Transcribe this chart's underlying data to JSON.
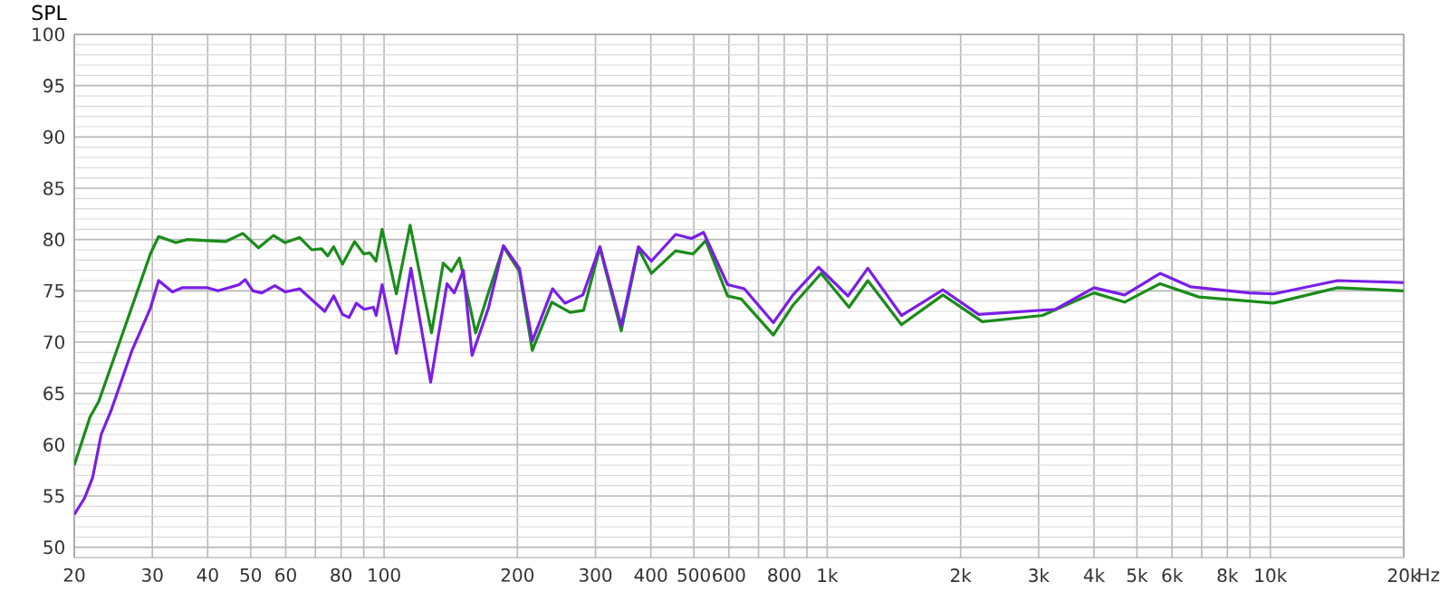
{
  "chart_data": {
    "type": "line",
    "ylabel": "SPL",
    "xlabel": "Hz",
    "log": "x",
    "grid": true,
    "marker": "none",
    "line_style": "solid",
    "xlim": [
      20,
      20000
    ],
    "ylim": [
      49,
      100
    ],
    "xticks": [
      20,
      30,
      40,
      50,
      60,
      {
        "value": 70,
        "label": null
      },
      80,
      {
        "value": 90,
        "label": null
      },
      100,
      200,
      300,
      400,
      500,
      600,
      {
        "value": 700,
        "label": null
      },
      800,
      {
        "value": 900,
        "label": null
      },
      {
        "value": 1000,
        "label": "1k"
      },
      {
        "value": 2000,
        "label": "2k"
      },
      {
        "value": 3000,
        "label": "3k"
      },
      {
        "value": 4000,
        "label": "4k"
      },
      {
        "value": 5000,
        "label": "5k"
      },
      {
        "value": 6000,
        "label": "6k"
      },
      {
        "value": 7000,
        "label": null
      },
      {
        "value": 8000,
        "label": "8k"
      },
      {
        "value": 9000,
        "label": null
      },
      {
        "value": 10000,
        "label": "10k"
      },
      {
        "value": 20000,
        "label": "20k"
      }
    ],
    "yticks": [
      50,
      55,
      60,
      65,
      70,
      75,
      80,
      85,
      90,
      95,
      100
    ],
    "series": [
      {
        "color": "#1a8c1a",
        "x": [
          20,
          21.7,
          22.7,
          25.5,
          29.7,
          31,
          33.9,
          36,
          40,
          43.9,
          48,
          52.1,
          56.3,
          59.8,
          64.5,
          68.7,
          72.3,
          74.6,
          77,
          80.6,
          85.8,
          90,
          92.9,
          95.9,
          99,
          106.6,
          114.5,
          128,
          136,
          142,
          148,
          161,
          172,
          186,
          202,
          216,
          239,
          263,
          282,
          307,
          343,
          375,
          401,
          455,
          498,
          532,
          596,
          640,
          756,
          837,
          969,
          1120,
          1235,
          1471,
          1825,
          2239,
          3060,
          4000,
          4688,
          5639,
          6900,
          10170,
          14180,
          20000
        ],
        "values": [
          58.0,
          62.7,
          64.2,
          70.4,
          78.6,
          80.3,
          79.7,
          80.0,
          79.9,
          79.8,
          80.6,
          79.2,
          80.4,
          79.7,
          80.2,
          79.0,
          79.1,
          78.4,
          79.3,
          77.6,
          79.8,
          78.6,
          78.7,
          77.9,
          81.0,
          74.7,
          81.4,
          70.9,
          77.7,
          76.9,
          78.2,
          70.9,
          74.8,
          79.3,
          76.9,
          69.2,
          73.9,
          72.9,
          73.1,
          79.2,
          71.1,
          79.1,
          76.7,
          78.9,
          78.6,
          79.9,
          74.5,
          74.2,
          70.7,
          73.6,
          76.7,
          73.4,
          76.0,
          71.7,
          74.6,
          72.0,
          72.6,
          74.8,
          73.9,
          75.7,
          74.4,
          73.8,
          75.3,
          75.0
        ]
      },
      {
        "color": "#7a1ee6",
        "x": [
          20,
          21.1,
          22,
          23,
          24.2,
          27,
          29.7,
          31,
          33.3,
          35,
          40,
          42.2,
          47.1,
          48.6,
          50.6,
          53,
          56.7,
          59.8,
          64.5,
          73.5,
          77,
          80.6,
          83.4,
          86.6,
          90.2,
          94.6,
          96,
          99,
          106.6,
          115,
          127.4,
          138.7,
          144,
          151,
          158,
          172,
          186,
          202,
          216,
          240,
          256,
          281,
          307,
          343,
          375,
          401,
          455,
          494,
          526,
          596,
          650,
          756,
          837,
          956,
          1114,
          1235,
          1471,
          1825,
          2196,
          3274,
          4000,
          4688,
          5639,
          6602,
          8969,
          10170,
          14180,
          20000
        ],
        "values": [
          53.2,
          54.8,
          56.8,
          61.0,
          63.3,
          69.2,
          73.3,
          76.0,
          74.9,
          75.3,
          75.3,
          75.0,
          75.6,
          76.1,
          75.0,
          74.8,
          75.5,
          74.9,
          75.2,
          73.0,
          74.5,
          72.7,
          72.4,
          73.8,
          73.2,
          73.4,
          72.6,
          75.6,
          68.9,
          77.2,
          66.1,
          75.7,
          74.8,
          77.0,
          68.7,
          73.3,
          79.4,
          77.2,
          70.1,
          75.2,
          73.8,
          74.6,
          79.3,
          71.6,
          79.3,
          77.9,
          80.5,
          80.1,
          80.7,
          75.6,
          75.2,
          71.9,
          74.6,
          77.3,
          74.5,
          77.2,
          72.6,
          75.1,
          72.7,
          73.2,
          75.3,
          74.6,
          76.7,
          75.4,
          74.8,
          74.7,
          76.0,
          75.8
        ]
      }
    ]
  }
}
